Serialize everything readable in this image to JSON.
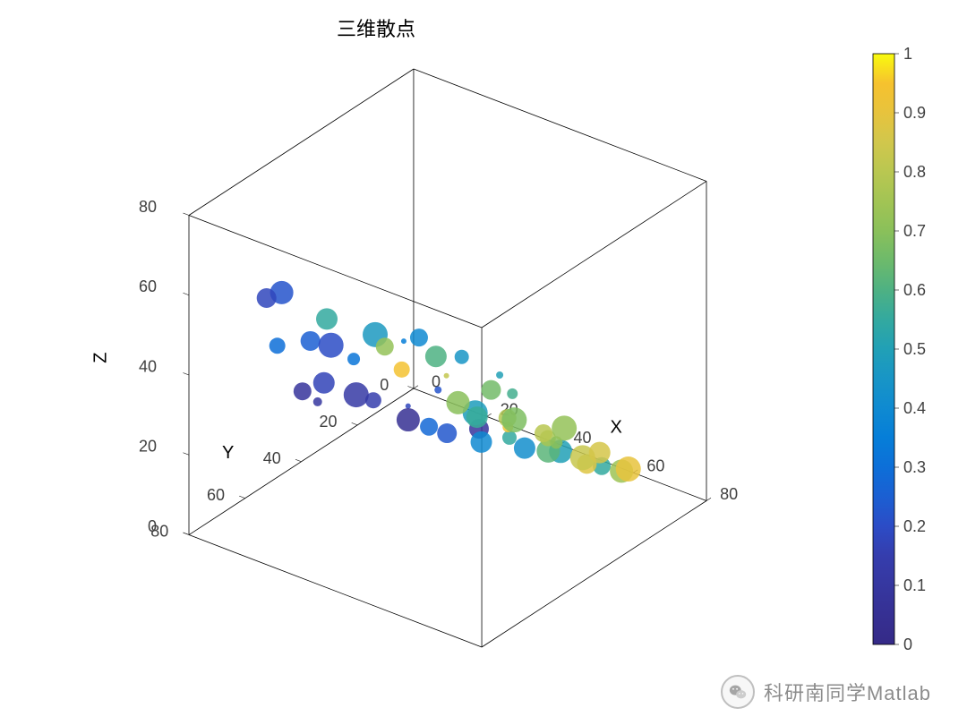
{
  "title": "三维散点",
  "title_fontsize": 22,
  "axis_label_fontsize": 20,
  "tick_fontsize": 18,
  "background_color": "#ffffff",
  "box_edge_color": "#000000",
  "box_line_width": 0.8,
  "xlabel": "X",
  "ylabel": "Y",
  "zlabel": "Z",
  "xlim": [
    0,
    80
  ],
  "ylim": [
    0,
    80
  ],
  "zlim": [
    0,
    80
  ],
  "xticks": [
    0,
    20,
    40,
    60,
    80
  ],
  "yticks": [
    0,
    20,
    40,
    60,
    80
  ],
  "zticks": [
    0,
    20,
    40,
    60,
    80
  ],
  "view": {
    "azimuth": -37.5,
    "elevation": 30
  },
  "colormap": "parula",
  "colormap_stops": [
    [
      0.0,
      "#352a87"
    ],
    [
      0.05,
      "#363093"
    ],
    [
      0.1,
      "#3637a0"
    ],
    [
      0.15,
      "#353dad"
    ],
    [
      0.2,
      "#2c4cc6"
    ],
    [
      0.25,
      "#1b5fd2"
    ],
    [
      0.3,
      "#0d6fd8"
    ],
    [
      0.35,
      "#067ed8"
    ],
    [
      0.4,
      "#0f8ad1"
    ],
    [
      0.45,
      "#1895c6"
    ],
    [
      0.5,
      "#21a0b6"
    ],
    [
      0.55,
      "#33a99f"
    ],
    [
      0.6,
      "#4eb183"
    ],
    [
      0.65,
      "#6dba6b"
    ],
    [
      0.7,
      "#8ac05a"
    ],
    [
      0.75,
      "#a2c454"
    ],
    [
      0.8,
      "#b9c751"
    ],
    [
      0.85,
      "#d1c74c"
    ],
    [
      0.9,
      "#e7c33d"
    ],
    [
      0.95,
      "#f6c22e"
    ],
    [
      1.0,
      "#f9fb0e"
    ]
  ],
  "colorbar": {
    "clim": [
      0,
      1
    ],
    "ticks": [
      0,
      0.1,
      0.2,
      0.3,
      0.4,
      0.5,
      0.6,
      0.7,
      0.8,
      0.9,
      1
    ],
    "width": 24,
    "edge_color": "#000000"
  },
  "marker_alpha": 0.85,
  "size_range": [
    3,
    14
  ],
  "scatter": {
    "type": "scatter3",
    "points": [
      {
        "x": 12,
        "y": 68,
        "z": 58,
        "c": 0.18,
        "s": 11
      },
      {
        "x": 10,
        "y": 60,
        "z": 55,
        "c": 0.22,
        "s": 13
      },
      {
        "x": 18,
        "y": 72,
        "z": 50,
        "c": 0.3,
        "s": 9
      },
      {
        "x": 25,
        "y": 62,
        "z": 48,
        "c": 0.2,
        "s": 14
      },
      {
        "x": 14,
        "y": 55,
        "z": 42,
        "c": 0.25,
        "s": 11
      },
      {
        "x": 22,
        "y": 50,
        "z": 38,
        "c": 0.32,
        "s": 7
      },
      {
        "x": 30,
        "y": 70,
        "z": 60,
        "c": 0.55,
        "s": 12
      },
      {
        "x": 34,
        "y": 58,
        "z": 52,
        "c": 0.47,
        "s": 14
      },
      {
        "x": 36,
        "y": 45,
        "z": 46,
        "c": 0.4,
        "s": 10
      },
      {
        "x": 28,
        "y": 40,
        "z": 40,
        "c": 0.35,
        "s": 3
      },
      {
        "x": 42,
        "y": 65,
        "z": 55,
        "c": 0.72,
        "s": 10
      },
      {
        "x": 46,
        "y": 52,
        "z": 48,
        "c": 0.6,
        "s": 12
      },
      {
        "x": 40,
        "y": 35,
        "z": 38,
        "c": 0.45,
        "s": 8
      },
      {
        "x": 45,
        "y": 28,
        "z": 32,
        "c": 0.5,
        "s": 4
      },
      {
        "x": 52,
        "y": 72,
        "z": 56,
        "c": 0.94,
        "s": 9
      },
      {
        "x": 55,
        "y": 60,
        "z": 50,
        "c": 0.82,
        "s": 3
      },
      {
        "x": 58,
        "y": 48,
        "z": 42,
        "c": 0.66,
        "s": 11
      },
      {
        "x": 50,
        "y": 30,
        "z": 30,
        "c": 0.58,
        "s": 6
      },
      {
        "x": 62,
        "y": 65,
        "z": 48,
        "c": 0.7,
        "s": 13
      },
      {
        "x": 64,
        "y": 50,
        "z": 38,
        "c": 0.78,
        "s": 10
      },
      {
        "x": 68,
        "y": 35,
        "z": 30,
        "c": 0.72,
        "s": 14
      },
      {
        "x": 72,
        "y": 58,
        "z": 44,
        "c": 0.68,
        "s": 14
      },
      {
        "x": 70,
        "y": 25,
        "z": 20,
        "c": 0.86,
        "s": 12
      },
      {
        "x": 8,
        "y": 50,
        "z": 25,
        "c": 0.08,
        "s": 10
      },
      {
        "x": 15,
        "y": 40,
        "z": 22,
        "c": 0.12,
        "s": 14
      },
      {
        "x": 6,
        "y": 42,
        "z": 18,
        "c": 0.1,
        "s": 5
      },
      {
        "x": 12,
        "y": 30,
        "z": 15,
        "c": 0.15,
        "s": 9
      },
      {
        "x": 20,
        "y": 28,
        "z": 12,
        "c": 0.05,
        "s": 13
      },
      {
        "x": 26,
        "y": 22,
        "z": 8,
        "c": 0.23,
        "s": 11
      },
      {
        "x": 18,
        "y": 18,
        "z": 5,
        "c": 0.28,
        "s": 10
      },
      {
        "x": 10,
        "y": 15,
        "z": 6,
        "c": 0.18,
        "s": 3
      },
      {
        "x": 30,
        "y": 15,
        "z": 4,
        "c": 0.4,
        "s": 12
      },
      {
        "x": 36,
        "y": 25,
        "z": 18,
        "c": 0.48,
        "s": 14
      },
      {
        "x": 40,
        "y": 18,
        "z": 10,
        "c": 0.55,
        "s": 8
      },
      {
        "x": 38,
        "y": 10,
        "z": 3,
        "c": 0.42,
        "s": 12
      },
      {
        "x": 24,
        "y": 8,
        "z": 2,
        "c": 0.08,
        "s": 11
      },
      {
        "x": 46,
        "y": 12,
        "z": 6,
        "c": 0.62,
        "s": 13
      },
      {
        "x": 52,
        "y": 20,
        "z": 15,
        "c": 0.76,
        "s": 9
      },
      {
        "x": 48,
        "y": 40,
        "z": 28,
        "c": 0.56,
        "s": 12
      },
      {
        "x": 55,
        "y": 10,
        "z": 5,
        "c": 0.88,
        "s": 11
      },
      {
        "x": 60,
        "y": 18,
        "z": 12,
        "c": 0.83,
        "s": 14
      },
      {
        "x": 62,
        "y": 30,
        "z": 22,
        "c": 0.7,
        "s": 7
      },
      {
        "x": 58,
        "y": 42,
        "z": 30,
        "c": 0.92,
        "s": 6
      },
      {
        "x": 66,
        "y": 12,
        "z": 8,
        "c": 0.74,
        "s": 13
      },
      {
        "x": 70,
        "y": 45,
        "z": 34,
        "c": 0.8,
        "s": 10
      },
      {
        "x": 74,
        "y": 20,
        "z": 15,
        "c": 0.9,
        "s": 14
      },
      {
        "x": 44,
        "y": 5,
        "z": 2,
        "c": 0.5,
        "s": 13
      },
      {
        "x": 56,
        "y": 6,
        "z": 3,
        "c": 0.55,
        "s": 10
      },
      {
        "x": 32,
        "y": 33,
        "z": 26,
        "c": 0.22,
        "s": 4
      },
      {
        "x": 20,
        "y": 58,
        "z": 35,
        "c": 0.17,
        "s": 12
      }
    ]
  },
  "watermark": {
    "text": "科研南同学Matlab",
    "icon": "wechat-icon",
    "color": "#666666"
  }
}
